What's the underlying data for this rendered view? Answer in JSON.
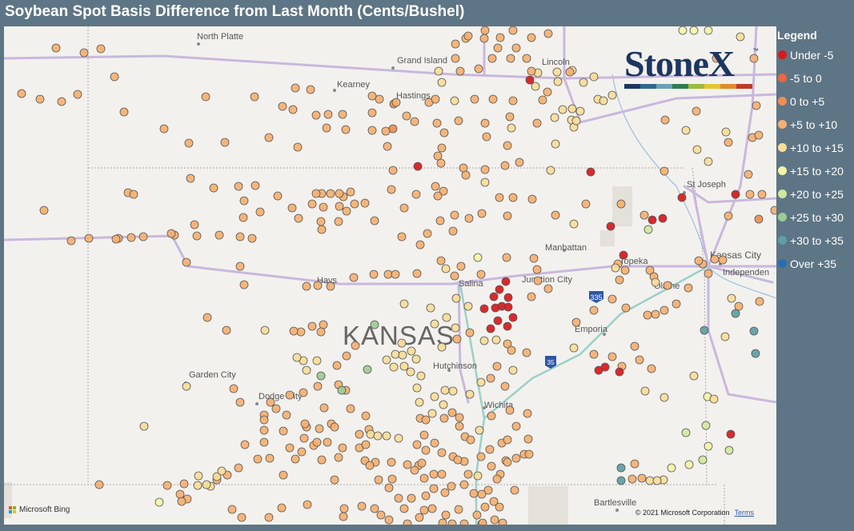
{
  "title": "Soybean Spot Basis Difference from Last Month (Cents/Bushel)",
  "legend": {
    "title": "Legend",
    "items": [
      {
        "label": "Under -5",
        "color": "#d7191c"
      },
      {
        "label": "-5 to 0",
        "color": "#e8683f"
      },
      {
        "label": "0 to +5",
        "color": "#f08c50"
      },
      {
        "label": "+5 to +10",
        "color": "#f5b070"
      },
      {
        "label": "+10 to +15",
        "color": "#f8dc98"
      },
      {
        "label": "+15 to +20",
        "color": "#f4f4a8"
      },
      {
        "label": "+20 to +25",
        "color": "#d0e8a0"
      },
      {
        "label": "+25 to +30",
        "color": "#9ccc94"
      },
      {
        "label": "+30 to +35",
        "color": "#5e9ea4"
      },
      {
        "label": "Over +35",
        "color": "#2b6db3"
      }
    ]
  },
  "brand": {
    "name": "StoneX",
    "tm": "™",
    "bar_colors": [
      "#1d3661",
      "#2f6a8e",
      "#6aa0b8",
      "#2e7d4f",
      "#9cbb3c",
      "#e3c630",
      "#e28a2b",
      "#c0392b"
    ]
  },
  "map": {
    "state_label": "KANSAS",
    "places": [
      "North Platte",
      "Grand Island",
      "Kearney",
      "Hastings",
      "St Joseph",
      "Manhattan",
      "Topeka",
      "Kansas City",
      "Independen",
      "Hays",
      "Junction City",
      "Salina",
      "Olathe",
      "Emporia",
      "Garden City",
      "Hutchinson",
      "Dodge City",
      "Wichita",
      "Bartlesville",
      "Lincoln"
    ],
    "highways": [
      "335",
      "35"
    ],
    "attribution": "Microsoft Bing",
    "copyright": "© 2021 Microsoft Corporation",
    "terms": "Terms"
  }
}
